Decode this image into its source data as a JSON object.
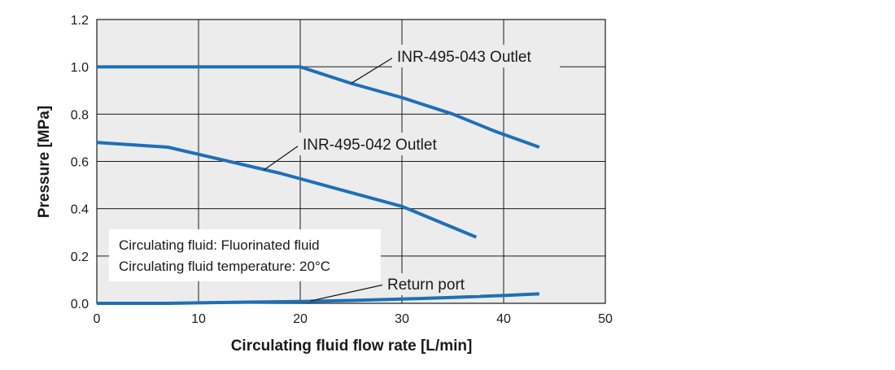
{
  "chart_data": {
    "type": "line",
    "xlabel": "Circulating fluid flow rate [L/min]",
    "ylabel": "Pressure [MPa]",
    "xlim": [
      0,
      50
    ],
    "ylim": [
      0,
      1.2
    ],
    "x_ticks": [
      "0",
      "10",
      "20",
      "30",
      "40",
      "50"
    ],
    "y_ticks": [
      "0.0",
      "0.2",
      "0.4",
      "0.6",
      "0.8",
      "1.0",
      "1.2"
    ],
    "grid": true,
    "series_color": "#1f6fb8",
    "plot_background": "#ececec",
    "series": [
      {
        "name": "INR-495-043 Outlet",
        "x": [
          0,
          20,
          25,
          30,
          35,
          39,
          43.5
        ],
        "y": [
          1.0,
          1.0,
          0.93,
          0.87,
          0.8,
          0.73,
          0.66
        ]
      },
      {
        "name": "INR-495-042 Outlet",
        "x": [
          0,
          7,
          12,
          18,
          24,
          30,
          37.3
        ],
        "y": [
          0.68,
          0.66,
          0.61,
          0.55,
          0.48,
          0.41,
          0.28
        ]
      },
      {
        "name": "Return port",
        "x": [
          0,
          7,
          15,
          20,
          25,
          30,
          35,
          40,
          43.5
        ],
        "y": [
          0.0,
          0.0,
          0.005,
          0.008,
          0.012,
          0.018,
          0.025,
          0.033,
          0.04
        ]
      }
    ],
    "annotations": [
      "Circulating fluid: Fluorinated fluid",
      "Circulating fluid temperature: 20°C"
    ]
  }
}
